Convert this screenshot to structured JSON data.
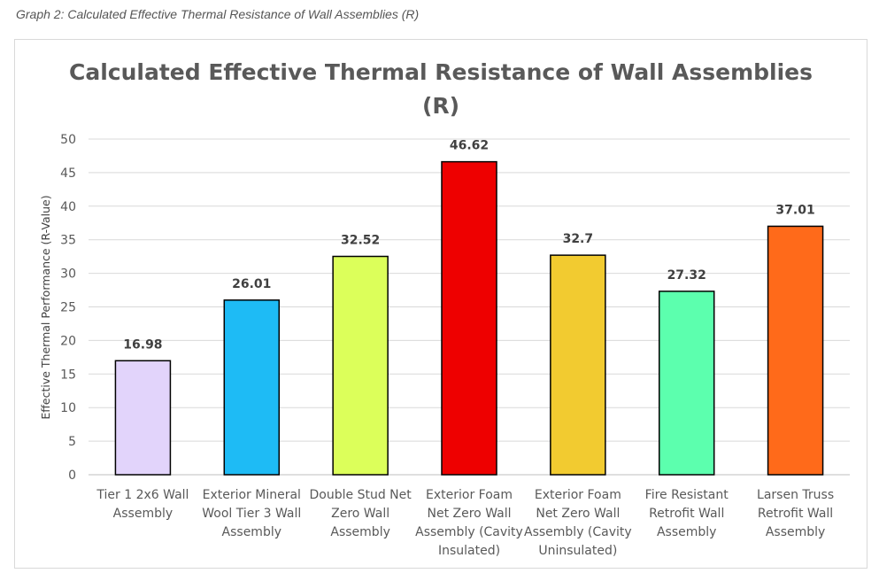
{
  "caption": "Graph 2: Calculated Effective Thermal Resistance of Wall Assemblies (R)",
  "chart_data": {
    "type": "bar",
    "title": [
      "Calculated Effective Thermal Resistance of Wall Assemblies",
      "(R)"
    ],
    "ylabel": "Effective Thermal Performance (R-Value)",
    "xlabel": "",
    "ylim": [
      0,
      50
    ],
    "yticks": [
      0,
      5,
      10,
      15,
      20,
      25,
      30,
      35,
      40,
      45,
      50
    ],
    "grid": true,
    "categories": [
      [
        "Tier 1 2x6 Wall",
        "Assembly"
      ],
      [
        "Exterior Mineral",
        "Wool Tier 3 Wall",
        "Assembly"
      ],
      [
        "Double Stud Net",
        "Zero Wall",
        "Assembly"
      ],
      [
        "Exterior Foam",
        "Net Zero Wall",
        "Assembly (Cavity",
        "Insulated)"
      ],
      [
        "Exterior Foam",
        "Net Zero Wall",
        "Assembly (Cavity",
        "Uninsulated)"
      ],
      [
        "Fire Resistant",
        "Retrofit Wall",
        "Assembly"
      ],
      [
        "Larsen Truss",
        "Retrofit Wall",
        "Assembly"
      ]
    ],
    "values": [
      16.98,
      26.01,
      32.52,
      46.62,
      32.7,
      27.32,
      37.01
    ],
    "data_labels": [
      "16.98",
      "26.01",
      "32.52",
      "46.62",
      "32.7",
      "27.32",
      "37.01"
    ],
    "colors": [
      "#e2d4fb",
      "#1ebbf5",
      "#dcff5a",
      "#ee0000",
      "#f2cb30",
      "#5cffae",
      "#ff6a1a"
    ]
  }
}
